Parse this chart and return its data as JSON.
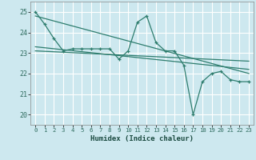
{
  "title": "",
  "xlabel": "Humidex (Indice chaleur)",
  "ylabel": "",
  "bg_color": "#cde8ef",
  "grid_color": "#ffffff",
  "line_color": "#2e7d6e",
  "xlim": [
    -0.5,
    23.5
  ],
  "ylim": [
    19.5,
    25.5
  ],
  "yticks": [
    20,
    21,
    22,
    23,
    24,
    25
  ],
  "xticks": [
    0,
    1,
    2,
    3,
    4,
    5,
    6,
    7,
    8,
    9,
    10,
    11,
    12,
    13,
    14,
    15,
    16,
    17,
    18,
    19,
    20,
    21,
    22,
    23
  ],
  "series": [
    {
      "x": [
        0,
        1,
        2,
        3,
        4,
        5,
        6,
        7,
        8,
        9,
        10,
        11,
        12,
        13,
        14,
        15,
        16,
        17,
        18,
        19,
        20,
        21,
        22,
        23
      ],
      "y": [
        25.0,
        24.4,
        23.7,
        23.1,
        23.2,
        23.2,
        23.2,
        23.2,
        23.2,
        22.7,
        23.1,
        24.5,
        24.8,
        23.5,
        23.1,
        23.1,
        22.4,
        20.0,
        21.6,
        22.0,
        22.1,
        21.7,
        21.6,
        21.6
      ],
      "marker": true
    },
    {
      "x": [
        0,
        23
      ],
      "y": [
        24.8,
        22.0
      ],
      "marker": false
    },
    {
      "x": [
        0,
        23
      ],
      "y": [
        23.1,
        22.6
      ],
      "marker": false
    },
    {
      "x": [
        0,
        23
      ],
      "y": [
        23.3,
        22.2
      ],
      "marker": false
    }
  ]
}
